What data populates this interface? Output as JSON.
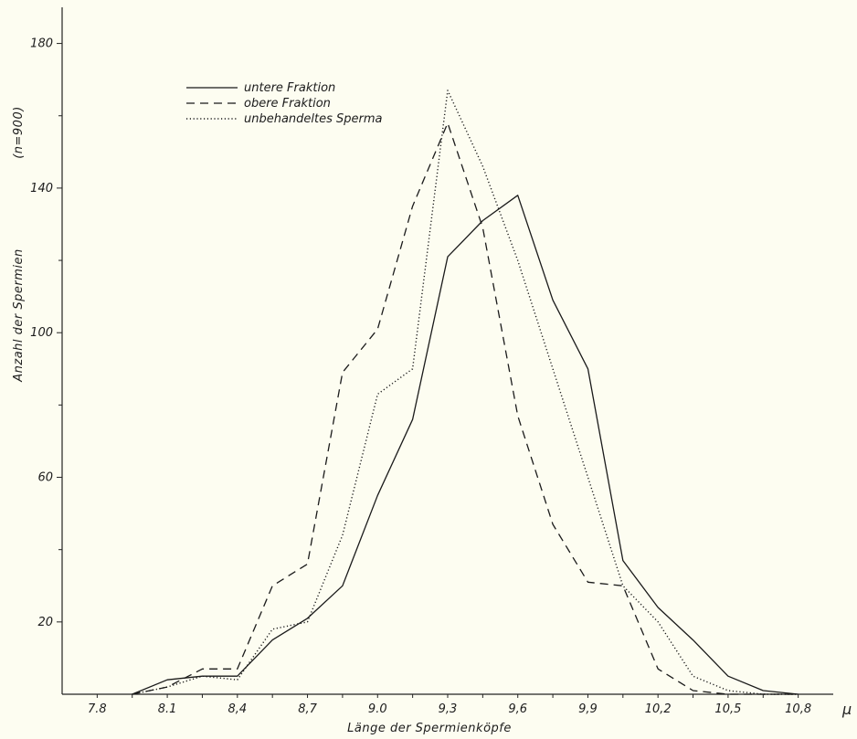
{
  "chart_data": {
    "type": "line",
    "title": "",
    "xlabel": "Länge der Spermienköpfe",
    "x_unit": "μ",
    "ylabel": "Anzahl der Spermien",
    "ylabel_note": "(n=900)",
    "x_ticks": [
      "7.8",
      "8.1",
      "8,4",
      "8,7",
      "9.0",
      "9,3",
      "9,6",
      "9,9",
      "10,2",
      "10,5",
      "10,8"
    ],
    "x_tick_values": [
      7.8,
      8.1,
      8.4,
      8.7,
      9.0,
      9.3,
      9.6,
      9.9,
      10.2,
      10.5,
      10.8
    ],
    "y_ticks": [
      "20",
      "60",
      "100",
      "140",
      "180"
    ],
    "y_tick_values": [
      20,
      60,
      100,
      140,
      180
    ],
    "xlim": [
      7.65,
      10.95
    ],
    "ylim": [
      0,
      190
    ],
    "grid": false,
    "legend_position": "top-left",
    "x": [
      7.95,
      8.1,
      8.25,
      8.4,
      8.55,
      8.7,
      8.85,
      9.0,
      9.15,
      9.3,
      9.45,
      9.6,
      9.75,
      9.9,
      10.05,
      10.2,
      10.35,
      10.5,
      10.65,
      10.8
    ],
    "series": [
      {
        "name": "untere Fraktion",
        "style": "solid",
        "values": [
          0,
          4,
          5,
          5,
          15,
          21,
          30,
          55,
          76,
          121,
          131,
          138,
          109,
          90,
          37,
          24,
          15,
          5,
          1,
          0
        ]
      },
      {
        "name": "obere Fraktion",
        "style": "dashed",
        "values": [
          0,
          2,
          7,
          7,
          30,
          36,
          89,
          101,
          135,
          158,
          129,
          77,
          47,
          31,
          30,
          7,
          1,
          0,
          0,
          0
        ]
      },
      {
        "name": "unbehandeltes Sperma",
        "style": "dotted",
        "values": [
          0,
          2,
          5,
          4,
          18,
          20,
          44,
          83,
          90,
          167,
          146,
          120,
          90,
          60,
          30,
          20,
          5,
          1,
          0,
          0
        ]
      }
    ]
  }
}
